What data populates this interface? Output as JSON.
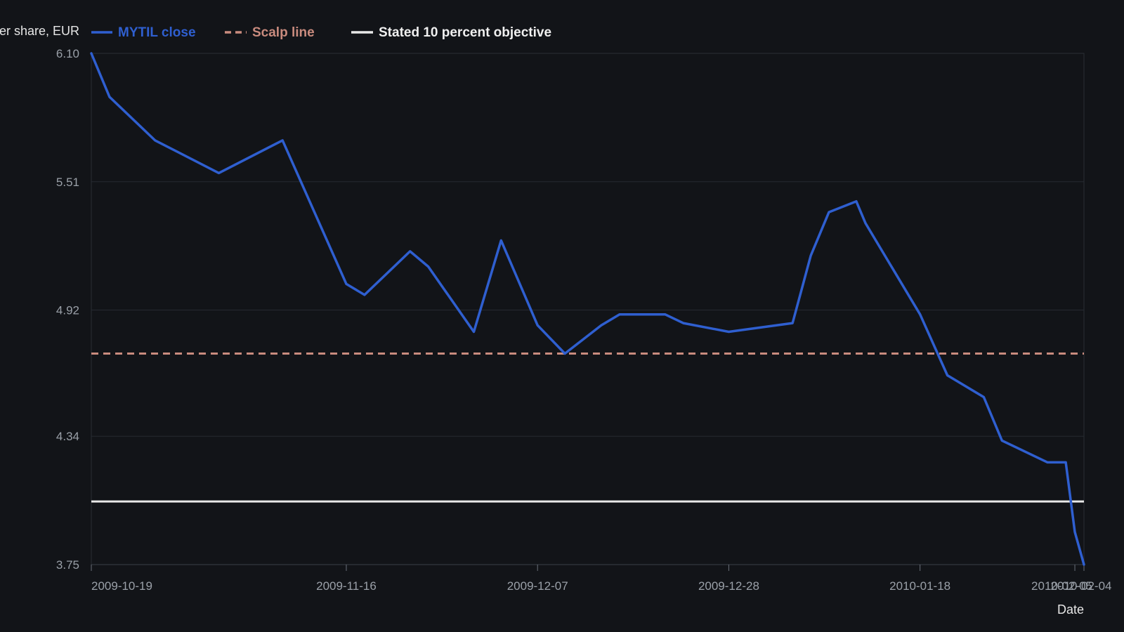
{
  "chart_data": {
    "type": "line",
    "ylabel": "Price per share, EUR",
    "xlabel": "Date",
    "y_ticks": [
      "6.10",
      "5.51",
      "4.92",
      "4.34",
      "3.75"
    ],
    "ylim": [
      3.75,
      6.1
    ],
    "x_ticks": [
      "2009-10-19",
      "2009-11-16",
      "2009-12-07",
      "2009-12-28",
      "2010-01-18",
      "2010-02-04",
      "2010-02-05"
    ],
    "xlim": [
      "2009-10-19",
      "2010-02-05"
    ],
    "grid": true,
    "legend_position": "top",
    "series": [
      {
        "name": "MYTIL close",
        "color": "#2f5fd0",
        "style": "solid",
        "points": [
          [
            "2009-10-19",
            6.1
          ],
          [
            "2009-10-21",
            5.9
          ],
          [
            "2009-10-26",
            5.7
          ],
          [
            "2009-11-02",
            5.55
          ],
          [
            "2009-11-09",
            5.7
          ],
          [
            "2009-11-16",
            5.04
          ],
          [
            "2009-11-18",
            4.99
          ],
          [
            "2009-11-23",
            5.19
          ],
          [
            "2009-11-25",
            5.12
          ],
          [
            "2009-11-30",
            4.82
          ],
          [
            "2009-12-03",
            5.24
          ],
          [
            "2009-12-07",
            4.85
          ],
          [
            "2009-12-10",
            4.72
          ],
          [
            "2009-12-14",
            4.85
          ],
          [
            "2009-12-16",
            4.9
          ],
          [
            "2009-12-21",
            4.9
          ],
          [
            "2009-12-23",
            4.86
          ],
          [
            "2009-12-28",
            4.82
          ],
          [
            "2010-01-04",
            4.86
          ],
          [
            "2010-01-06",
            5.17
          ],
          [
            "2010-01-08",
            5.37
          ],
          [
            "2010-01-11",
            5.42
          ],
          [
            "2010-01-12",
            5.32
          ],
          [
            "2010-01-18",
            4.9
          ],
          [
            "2010-01-21",
            4.62
          ],
          [
            "2010-01-25",
            4.52
          ],
          [
            "2010-01-27",
            4.32
          ],
          [
            "2010-02-01",
            4.22
          ],
          [
            "2010-02-03",
            4.22
          ],
          [
            "2010-02-04",
            3.9
          ],
          [
            "2010-02-05",
            3.75
          ]
        ]
      },
      {
        "name": "Scalp line",
        "color": "#c98b7e",
        "style": "dashed",
        "level": 4.72
      },
      {
        "name": "Stated 10 percent objective",
        "color": "#e8e8e8",
        "style": "solid",
        "level": 4.04
      }
    ]
  }
}
